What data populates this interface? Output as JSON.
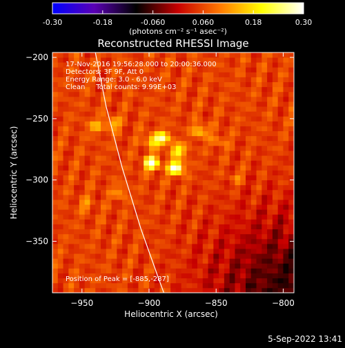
{
  "colorbar": {
    "ticks": [
      "-0.30",
      "-0.18",
      "-0.060",
      "0.060",
      "0.18",
      "0.30"
    ],
    "tick_values": [
      -0.3,
      -0.18,
      -0.06,
      0.06,
      0.18,
      0.3
    ],
    "range": [
      -0.3,
      0.3
    ],
    "units_label": "(photons cm⁻² s⁻¹ asec⁻²)",
    "colormap": [
      "#0000ff",
      "#5a00b4",
      "#000000",
      "#c80000",
      "#ff7800",
      "#ffff00",
      "#ffffff"
    ]
  },
  "chart_data": {
    "type": "heatmap",
    "title": "Reconstructed RHESSI Image",
    "xlabel": "Heliocentric X (arcsec)",
    "ylabel": "Heliocentric Y (arcsec)",
    "xlim": [
      -972,
      -792
    ],
    "ylim": [
      -392,
      -196
    ],
    "x_ticks": [
      -950,
      -900,
      -850,
      -800
    ],
    "x_tick_labels": [
      "−950",
      "−900",
      "−850",
      "−800"
    ],
    "y_ticks": [
      -200,
      -250,
      -300,
      -350
    ],
    "y_tick_labels": [
      "−200",
      "−250",
      "−300",
      "−350"
    ],
    "info_lines": [
      "17-Nov-2016 19:56:28.000 to 20:00:36.000",
      "Detectors: 3F 9F, Att 0",
      "Energy Range: 3.0 - 6.0 keV",
      "Clean     Total counts: 9.99E+03"
    ],
    "peak_label": "Position of Peak = [-885,-287]",
    "peak_position": [
      -885,
      -287
    ],
    "sources": [
      {
        "x": -898,
        "y": -286,
        "flux": 0.27
      },
      {
        "x": -880,
        "y": -290,
        "flux": 0.28
      },
      {
        "x": -890,
        "y": -266,
        "flux": 0.2
      },
      {
        "x": -878,
        "y": -276,
        "flux": 0.17
      },
      {
        "x": -898,
        "y": -268,
        "flux": 0.12
      },
      {
        "x": -862,
        "y": -260,
        "flux": 0.12
      },
      {
        "x": -927,
        "y": -254,
        "flux": 0.1
      },
      {
        "x": -940,
        "y": -256,
        "flux": 0.09
      },
      {
        "x": -922,
        "y": -310,
        "flux": 0.07
      },
      {
        "x": -947,
        "y": -320,
        "flux": 0.06
      },
      {
        "x": -848,
        "y": -268,
        "flux": 0.06
      },
      {
        "x": -835,
        "y": -298,
        "flux": 0.05
      }
    ],
    "limb_line": {
      "points": [
        [
          -940,
          -196
        ],
        [
          -932,
          -240
        ],
        [
          -920,
          -290
        ],
        [
          -906,
          -340
        ],
        [
          -893,
          -380
        ],
        [
          -889,
          -392
        ]
      ],
      "color": "#ffffff"
    }
  },
  "footer": {
    "date": "5-Sep-2022 13:41"
  }
}
